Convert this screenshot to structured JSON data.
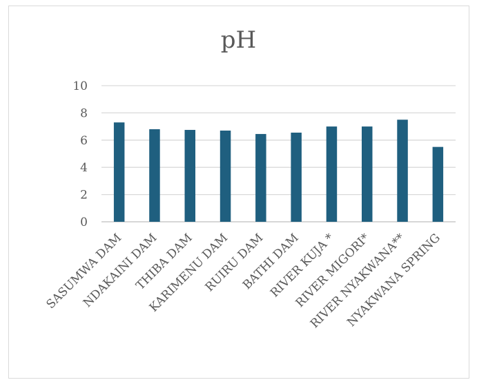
{
  "chart_data": {
    "type": "bar",
    "title": "pH",
    "categories": [
      "SASUMWA DAM",
      "NDAKAINI DAM",
      "THIBA DAM",
      "KARIMENU DAM",
      "RUIRU DAM",
      "BATHI DAM",
      "RIVER KUJA *",
      "RIVER MIGORI*",
      "RIVER NYAKWANA**",
      "NYAKWANA SPRING"
    ],
    "values": [
      7.3,
      6.8,
      6.75,
      6.7,
      6.45,
      6.55,
      7.0,
      7.0,
      7.5,
      5.5
    ],
    "ylim": [
      0,
      10
    ],
    "yticks": [
      0,
      2,
      4,
      6,
      8,
      10
    ],
    "grid": true,
    "legend": "none",
    "bar_color": "#1f5f7f"
  }
}
